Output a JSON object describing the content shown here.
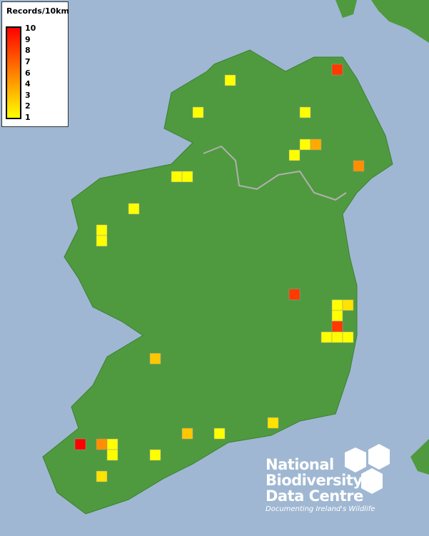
{
  "legend": {
    "title": "Records/10km",
    "ticks": [
      "10",
      "9",
      "8",
      "7",
      "6",
      "4",
      "3",
      "2",
      "1"
    ],
    "color_low": "#ffff00",
    "color_mid": "#ff8000",
    "color_high": "#ff0000"
  },
  "logo": {
    "line1": "National",
    "line2": "Biodiversity",
    "line3": "Data Centre",
    "tagline": "Documenting Ireland's Wildlife"
  },
  "colors": {
    "sea": "#9fb7d2",
    "land": "#4f9a3f",
    "border": "#b0b0b0"
  },
  "squares_records": [
    1,
    8,
    1,
    1,
    1,
    4,
    1,
    5,
    1,
    1,
    1,
    1,
    1,
    8,
    1,
    2,
    1,
    8,
    1,
    1,
    1,
    3,
    10,
    5,
    1,
    1,
    1,
    2,
    3,
    1,
    2
  ]
}
